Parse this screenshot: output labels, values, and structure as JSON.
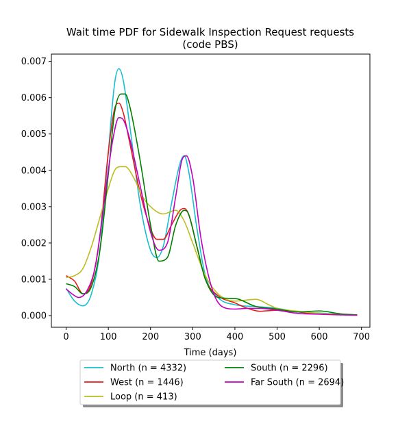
{
  "chart_data": {
    "type": "line",
    "title": "Wait time PDF for Sidewalk Inspection Request  requests",
    "subtitle": "(code PBS)",
    "xlabel": "Time (days)",
    "ylabel": "",
    "xlim": [
      -35,
      720
    ],
    "ylim": [
      -0.00032,
      0.0072
    ],
    "xticks": [
      0,
      100,
      200,
      300,
      400,
      500,
      600,
      700
    ],
    "yticks": [
      0.0,
      0.001,
      0.002,
      0.003,
      0.004,
      0.005,
      0.006,
      0.007
    ],
    "ytick_labels": [
      "0.000",
      "0.001",
      "0.002",
      "0.003",
      "0.004",
      "0.005",
      "0.006",
      "0.007"
    ],
    "grid": false,
    "legend": {
      "placement": "below",
      "columns": 2
    },
    "series": [
      {
        "name": "North (n = 4332)",
        "color": "#17becf",
        "x": [
          0,
          20,
          40,
          60,
          80,
          100,
          115,
          125,
          135,
          150,
          175,
          200,
          215,
          230,
          250,
          270,
          280,
          290,
          310,
          330,
          360,
          400,
          450,
          500,
          550,
          600,
          650,
          690
        ],
        "y": [
          0.00075,
          0.0004,
          0.00027,
          0.0006,
          0.0018,
          0.0045,
          0.0064,
          0.0068,
          0.0065,
          0.0053,
          0.0031,
          0.0018,
          0.0016,
          0.0019,
          0.0031,
          0.0042,
          0.0044,
          0.004,
          0.0024,
          0.0011,
          0.0005,
          0.0003,
          0.00025,
          0.0002,
          0.0001,
          7e-05,
          4e-05,
          2e-05
        ]
      },
      {
        "name": "West (n = 1446)",
        "color": "#e41a1c",
        "x": [
          0,
          20,
          40,
          60,
          80,
          100,
          115,
          125,
          135,
          150,
          175,
          200,
          215,
          230,
          250,
          270,
          280,
          290,
          310,
          330,
          360,
          400,
          430,
          460,
          500,
          550,
          600,
          650,
          690
        ],
        "y": [
          0.0011,
          0.00095,
          0.0006,
          0.0009,
          0.0022,
          0.0045,
          0.0057,
          0.00585,
          0.0056,
          0.0048,
          0.0034,
          0.0024,
          0.0021,
          0.0021,
          0.0025,
          0.0029,
          0.00295,
          0.0028,
          0.0019,
          0.001,
          0.00055,
          0.00035,
          0.0002,
          0.00012,
          0.00015,
          0.0001,
          5e-05,
          3e-05,
          2e-05
        ]
      },
      {
        "name": "Loop (n = 413)",
        "color": "#bcbd22",
        "x": [
          0,
          20,
          40,
          60,
          80,
          100,
          115,
          130,
          140,
          160,
          180,
          200,
          230,
          260,
          280,
          300,
          330,
          360,
          400,
          450,
          480,
          500,
          550,
          600,
          650,
          690
        ],
        "y": [
          0.00105,
          0.0011,
          0.0013,
          0.0019,
          0.0027,
          0.0035,
          0.004,
          0.0041,
          0.0041,
          0.0038,
          0.0033,
          0.003,
          0.0028,
          0.0029,
          0.0026,
          0.002,
          0.0011,
          0.0006,
          0.0004,
          0.00045,
          0.0003,
          0.0002,
          0.00012,
          6e-05,
          3e-05,
          1e-05
        ]
      },
      {
        "name": "South (n = 2296)",
        "color": "#008000",
        "x": [
          0,
          20,
          40,
          60,
          80,
          100,
          115,
          130,
          140,
          150,
          175,
          200,
          220,
          240,
          260,
          280,
          290,
          310,
          330,
          360,
          400,
          450,
          500,
          550,
          600,
          650,
          690
        ],
        "y": [
          0.00088,
          0.0008,
          0.0006,
          0.0008,
          0.0018,
          0.0039,
          0.0056,
          0.0061,
          0.0061,
          0.0058,
          0.0043,
          0.0025,
          0.0015,
          0.0016,
          0.0025,
          0.0029,
          0.0028,
          0.0019,
          0.001,
          0.0005,
          0.00047,
          0.00025,
          0.00018,
          0.0001,
          0.00013,
          5e-05,
          2e-05
        ]
      },
      {
        "name": "Far South (n = 2694)",
        "color": "#bf00bf",
        "x": [
          0,
          20,
          30,
          50,
          70,
          90,
          110,
          125,
          135,
          150,
          175,
          200,
          220,
          240,
          260,
          275,
          285,
          300,
          320,
          350,
          380,
          400,
          430,
          460,
          500,
          550,
          600,
          650,
          690
        ],
        "y": [
          0.00073,
          0.00055,
          0.0005,
          0.0007,
          0.0014,
          0.0031,
          0.0048,
          0.00545,
          0.0054,
          0.0049,
          0.0036,
          0.0023,
          0.0018,
          0.002,
          0.0033,
          0.0043,
          0.0044,
          0.0038,
          0.0021,
          0.0006,
          0.0002,
          0.00018,
          0.0002,
          0.0002,
          0.00015,
          6e-05,
          4e-05,
          2e-05,
          1e-05
        ]
      }
    ]
  }
}
